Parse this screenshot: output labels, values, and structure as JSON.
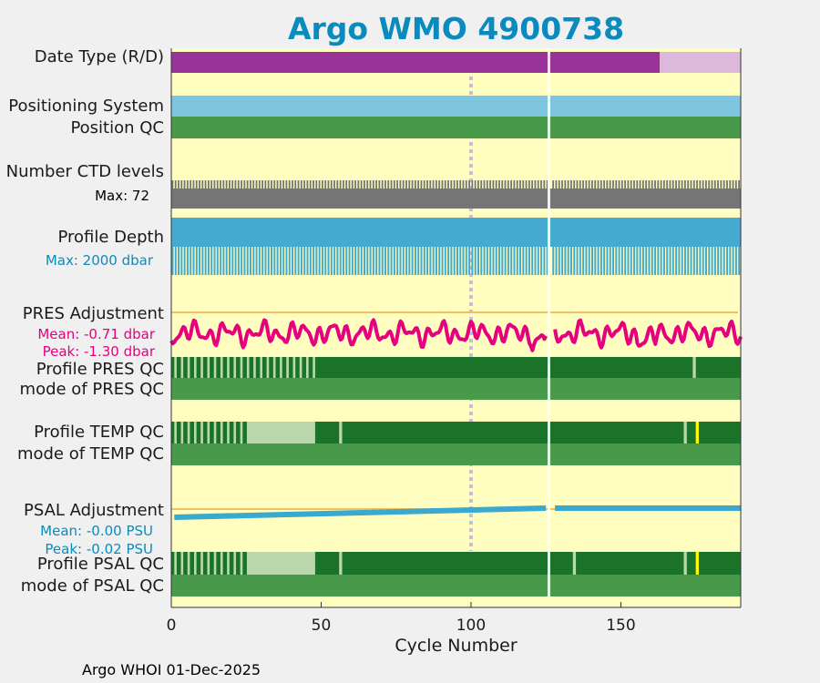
{
  "chart_data": {
    "type": "bar",
    "title": "Argo WMO 4900738",
    "xlabel": "Cycle Number",
    "xlim": [
      0,
      190
    ],
    "xticks": [
      "0",
      "50",
      "100",
      "150"
    ],
    "rows": [
      {
        "label": "Date Type (R/D)"
      },
      {
        "label": "Positioning System"
      },
      {
        "label": "Position QC"
      },
      {
        "label": "Number CTD levels",
        "note": "Max: 72"
      },
      {
        "label": "Profile Depth",
        "note": "Max: 2000 dbar"
      },
      {
        "label": "PRES Adjustment",
        "notes": [
          "Mean: -0.71 dbar",
          "Peak: -1.30 dbar"
        ]
      },
      {
        "label": "Profile PRES QC"
      },
      {
        "label": "mode of PRES QC"
      },
      {
        "label": "Profile TEMP QC"
      },
      {
        "label": "mode of TEMP QC"
      },
      {
        "label": "PSAL Adjustment",
        "notes": [
          "Mean: -0.00 PSU",
          "Peak: -0.02 PSU"
        ]
      },
      {
        "label": "Profile PSAL QC"
      },
      {
        "label": "mode of PSAL QC"
      }
    ],
    "date_type_delayed_until_cycle": 163,
    "gap_cycle": 126,
    "marker_cycle": 100,
    "pres_adjustment": {
      "mean": -0.71,
      "peak": -1.3
    },
    "psal_adjustment": {
      "mean": -0.0,
      "peak": -0.02
    },
    "colors": {
      "background": "#fffec0",
      "delayed": "#993399",
      "realtime": "#dcb8dc",
      "positioning": "#7ec5e0",
      "mode_qc": "#48994a",
      "qc_good": "#1a7329",
      "qc_partial": "#bbd8ad",
      "qc_flag": "#ffff00",
      "ctd": "#757575",
      "depth": "#45aacf",
      "pres_line": "#e6007e",
      "psal_line": "#3aa8cf",
      "ref_line": "#f0c060",
      "title": "#0a8bbf"
    }
  },
  "credit": "Argo WHOI 01-Dec-2025"
}
